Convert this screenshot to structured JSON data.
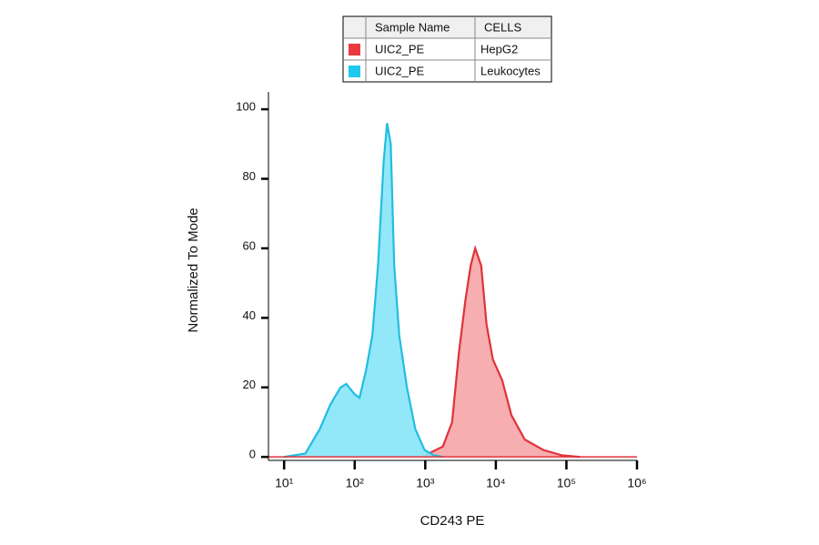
{
  "chart_data": {
    "type": "histogram-overlay",
    "xlabel": "CD243 PE",
    "ylabel": "Normalized To Mode",
    "xscale": "log",
    "xlim": [
      6,
      1000000
    ],
    "ylim": [
      -1,
      105
    ],
    "xticks": [
      {
        "value": 10,
        "label": "10¹"
      },
      {
        "value": 100,
        "label": "10²"
      },
      {
        "value": 1000,
        "label": "10³"
      },
      {
        "value": 10000,
        "label": "10⁴"
      },
      {
        "value": 100000,
        "label": "10⁵"
      },
      {
        "value": 1000000,
        "label": "10⁶"
      }
    ],
    "yticks": [
      0,
      20,
      40,
      60,
      80,
      100
    ],
    "legend": {
      "headers": [
        "Sample Name",
        "CELLS"
      ]
    },
    "series": [
      {
        "name": "UIC2_PE",
        "cells": "HepG2",
        "color": "#e0323a",
        "fill": "#f5a5a7",
        "swatch": "#ea3a3f",
        "x": [
          1000,
          1778,
          2400,
          3000,
          3700,
          4400,
          5100,
          6200,
          7400,
          9100,
          12300,
          16600,
          25700,
          46800,
          85100,
          155000
        ],
        "values": [
          0.5,
          3,
          10,
          30,
          45,
          55,
          60,
          55,
          38,
          28,
          22,
          12,
          5,
          2,
          0.5,
          0
        ]
      },
      {
        "name": "UIC2_PE",
        "cells": "Leukocytes",
        "color": "#22bde0",
        "fill": "#86e6f8",
        "swatch": "#1ec8ee",
        "x": [
          10,
          20,
          32,
          45,
          63,
          76,
          100,
          117,
          145,
          178,
          214,
          257,
          288,
          324,
          363,
          427,
          550,
          724,
          977,
          1318,
          1778
        ],
        "values": [
          0,
          1,
          8,
          15,
          20,
          21,
          18,
          17,
          25,
          35,
          55,
          85,
          96,
          90,
          55,
          35,
          20,
          8,
          2,
          0.5,
          0
        ]
      }
    ]
  }
}
